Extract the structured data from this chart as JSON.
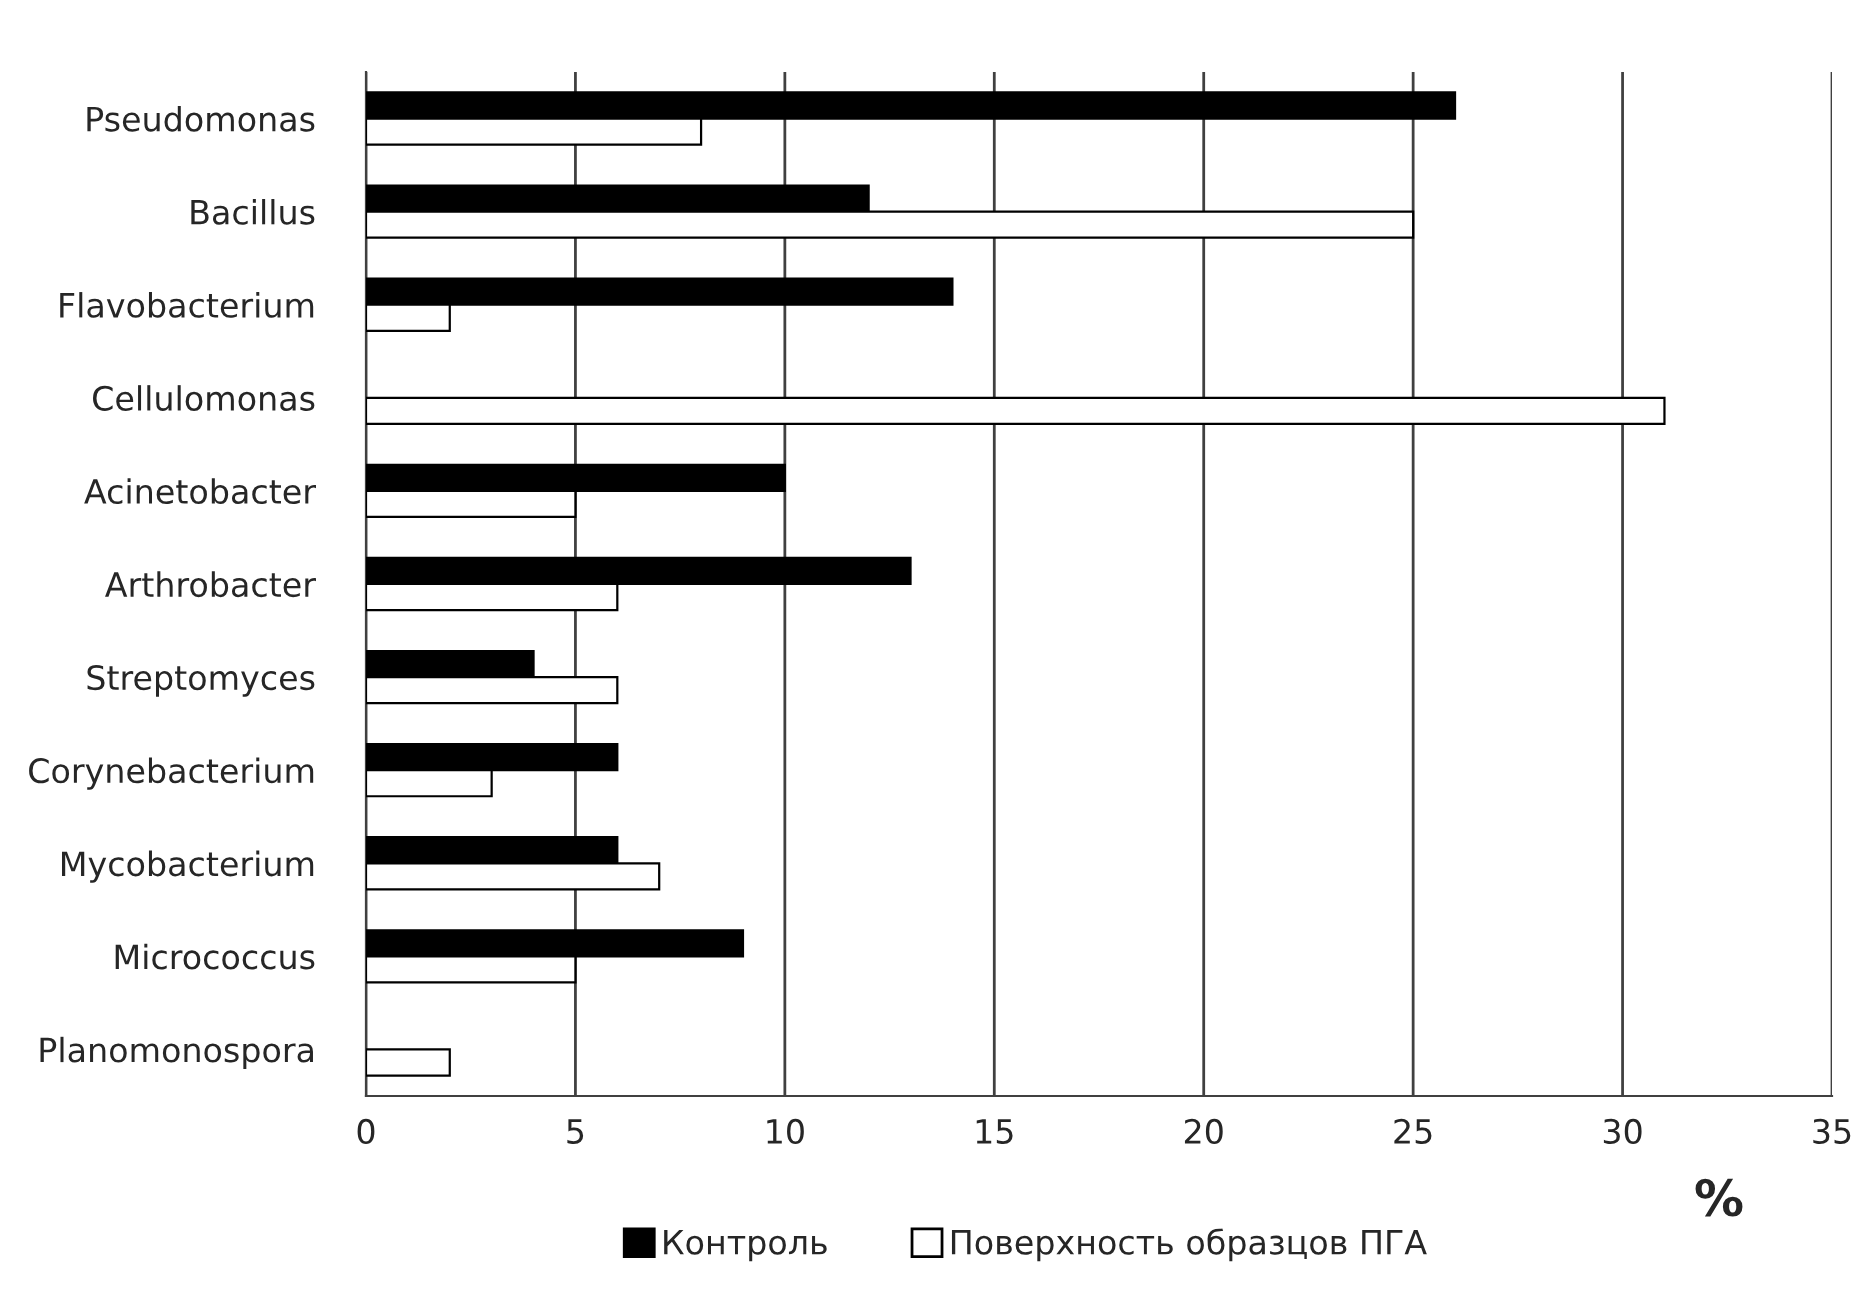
{
  "chart_data": {
    "type": "bar",
    "orientation": "horizontal",
    "xlabel": "%",
    "categories": [
      "Pseudomonas",
      "Bacillus",
      "Flavobacterium",
      "Cellulomonas",
      "Acinetobacter",
      "Arthrobacter",
      "Streptomyces",
      "Corynebacterium",
      "Mycobacterium",
      "Micrococcus",
      "Planomonospora"
    ],
    "series": [
      {
        "name": "Контроль",
        "color": "#000000",
        "values": [
          26,
          12,
          14,
          null,
          10,
          13,
          4,
          6,
          6,
          9,
          null
        ]
      },
      {
        "name": "Поверхность образцов ПГА",
        "color": "#ffffff",
        "values": [
          8,
          25,
          2,
          31,
          5,
          6,
          6,
          3,
          7,
          5,
          2
        ]
      }
    ],
    "xlim": [
      0,
      35
    ],
    "xticks": [
      0,
      5,
      10,
      15,
      20,
      25,
      30,
      35
    ],
    "grid": "x",
    "legend": "bottom"
  }
}
